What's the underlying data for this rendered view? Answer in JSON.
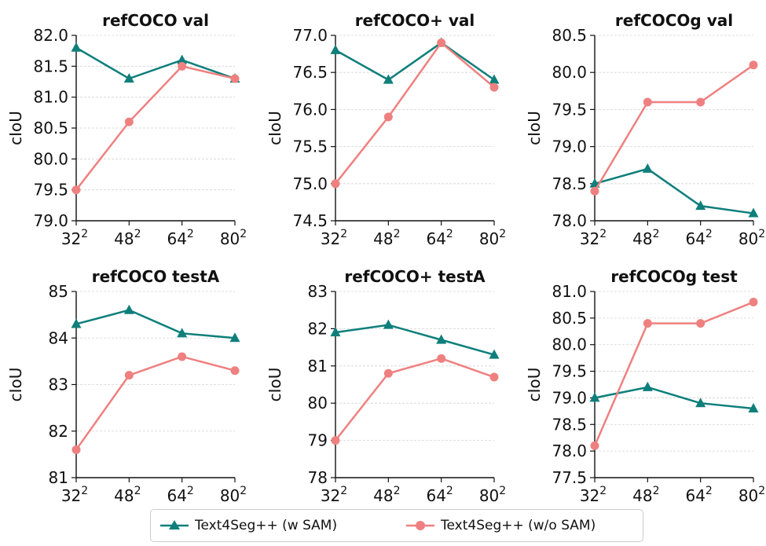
{
  "colors": {
    "with_sam": "#0e7f7b",
    "without_sam": "#ef8080",
    "axis": "#111111",
    "grid": "#d4d4d4"
  },
  "legend": {
    "with_sam_label": "Text4Seg++ (w SAM)",
    "without_sam_label": "Text4Seg++ (w/o SAM)"
  },
  "chart_data": [
    {
      "type": "line",
      "title": "refCOCO val",
      "ylabel": "cIoU",
      "categories": [
        "32",
        "48",
        "64",
        "80"
      ],
      "category_superscript": "2",
      "ylim": [
        79.0,
        82.0
      ],
      "yticks": [
        "79.0",
        "79.5",
        "80.0",
        "80.5",
        "81.0",
        "81.5",
        "82.0"
      ],
      "series": [
        {
          "name": "Text4Seg++ (w SAM)",
          "values": [
            81.8,
            81.3,
            81.6,
            81.3
          ]
        },
        {
          "name": "Text4Seg++ (w/o SAM)",
          "values": [
            79.5,
            80.6,
            81.5,
            81.3
          ]
        }
      ]
    },
    {
      "type": "line",
      "title": "refCOCO+ val",
      "ylabel": "cIoU",
      "categories": [
        "32",
        "48",
        "64",
        "80"
      ],
      "category_superscript": "2",
      "ylim": [
        74.5,
        77.0
      ],
      "yticks": [
        "74.5",
        "75.0",
        "75.5",
        "76.0",
        "76.5",
        "77.0"
      ],
      "series": [
        {
          "name": "Text4Seg++ (w SAM)",
          "values": [
            76.8,
            76.4,
            76.9,
            76.4
          ]
        },
        {
          "name": "Text4Seg++ (w/o SAM)",
          "values": [
            75.0,
            75.9,
            76.9,
            76.3
          ]
        }
      ]
    },
    {
      "type": "line",
      "title": "refCOCOg val",
      "ylabel": "cIoU",
      "categories": [
        "32",
        "48",
        "64",
        "80"
      ],
      "category_superscript": "2",
      "ylim": [
        78.0,
        80.5
      ],
      "yticks": [
        "78.0",
        "78.5",
        "79.0",
        "79.5",
        "80.0",
        "80.5"
      ],
      "series": [
        {
          "name": "Text4Seg++ (w SAM)",
          "values": [
            78.5,
            78.7,
            78.2,
            78.1
          ]
        },
        {
          "name": "Text4Seg++ (w/o SAM)",
          "values": [
            78.4,
            79.6,
            79.6,
            80.1
          ]
        }
      ]
    },
    {
      "type": "line",
      "title": "refCOCO testA",
      "ylabel": "cIoU",
      "categories": [
        "32",
        "48",
        "64",
        "80"
      ],
      "category_superscript": "2",
      "ylim": [
        81,
        85
      ],
      "yticks": [
        "81",
        "82",
        "83",
        "84",
        "85"
      ],
      "series": [
        {
          "name": "Text4Seg++ (w SAM)",
          "values": [
            84.3,
            84.6,
            84.1,
            84.0
          ]
        },
        {
          "name": "Text4Seg++ (w/o SAM)",
          "values": [
            81.6,
            83.2,
            83.6,
            83.3
          ]
        }
      ]
    },
    {
      "type": "line",
      "title": "refCOCO+ testA",
      "ylabel": "cIoU",
      "categories": [
        "32",
        "48",
        "64",
        "80"
      ],
      "category_superscript": "2",
      "ylim": [
        78,
        83
      ],
      "yticks": [
        "78",
        "79",
        "80",
        "81",
        "82",
        "83"
      ],
      "series": [
        {
          "name": "Text4Seg++ (w SAM)",
          "values": [
            81.9,
            82.1,
            81.7,
            81.3
          ]
        },
        {
          "name": "Text4Seg++ (w/o SAM)",
          "values": [
            79.0,
            80.8,
            81.2,
            80.7
          ]
        }
      ]
    },
    {
      "type": "line",
      "title": "refCOCOg test",
      "ylabel": "cIoU",
      "categories": [
        "32",
        "48",
        "64",
        "80"
      ],
      "category_superscript": "2",
      "ylim": [
        77.5,
        81.0
      ],
      "yticks": [
        "77.5",
        "78.0",
        "78.5",
        "79.0",
        "79.5",
        "80.0",
        "80.5",
        "81.0"
      ],
      "series": [
        {
          "name": "Text4Seg++ (w SAM)",
          "values": [
            79.0,
            79.2,
            78.9,
            78.8
          ]
        },
        {
          "name": "Text4Seg++ (w/o SAM)",
          "values": [
            78.1,
            80.4,
            80.4,
            80.8
          ]
        }
      ]
    }
  ]
}
